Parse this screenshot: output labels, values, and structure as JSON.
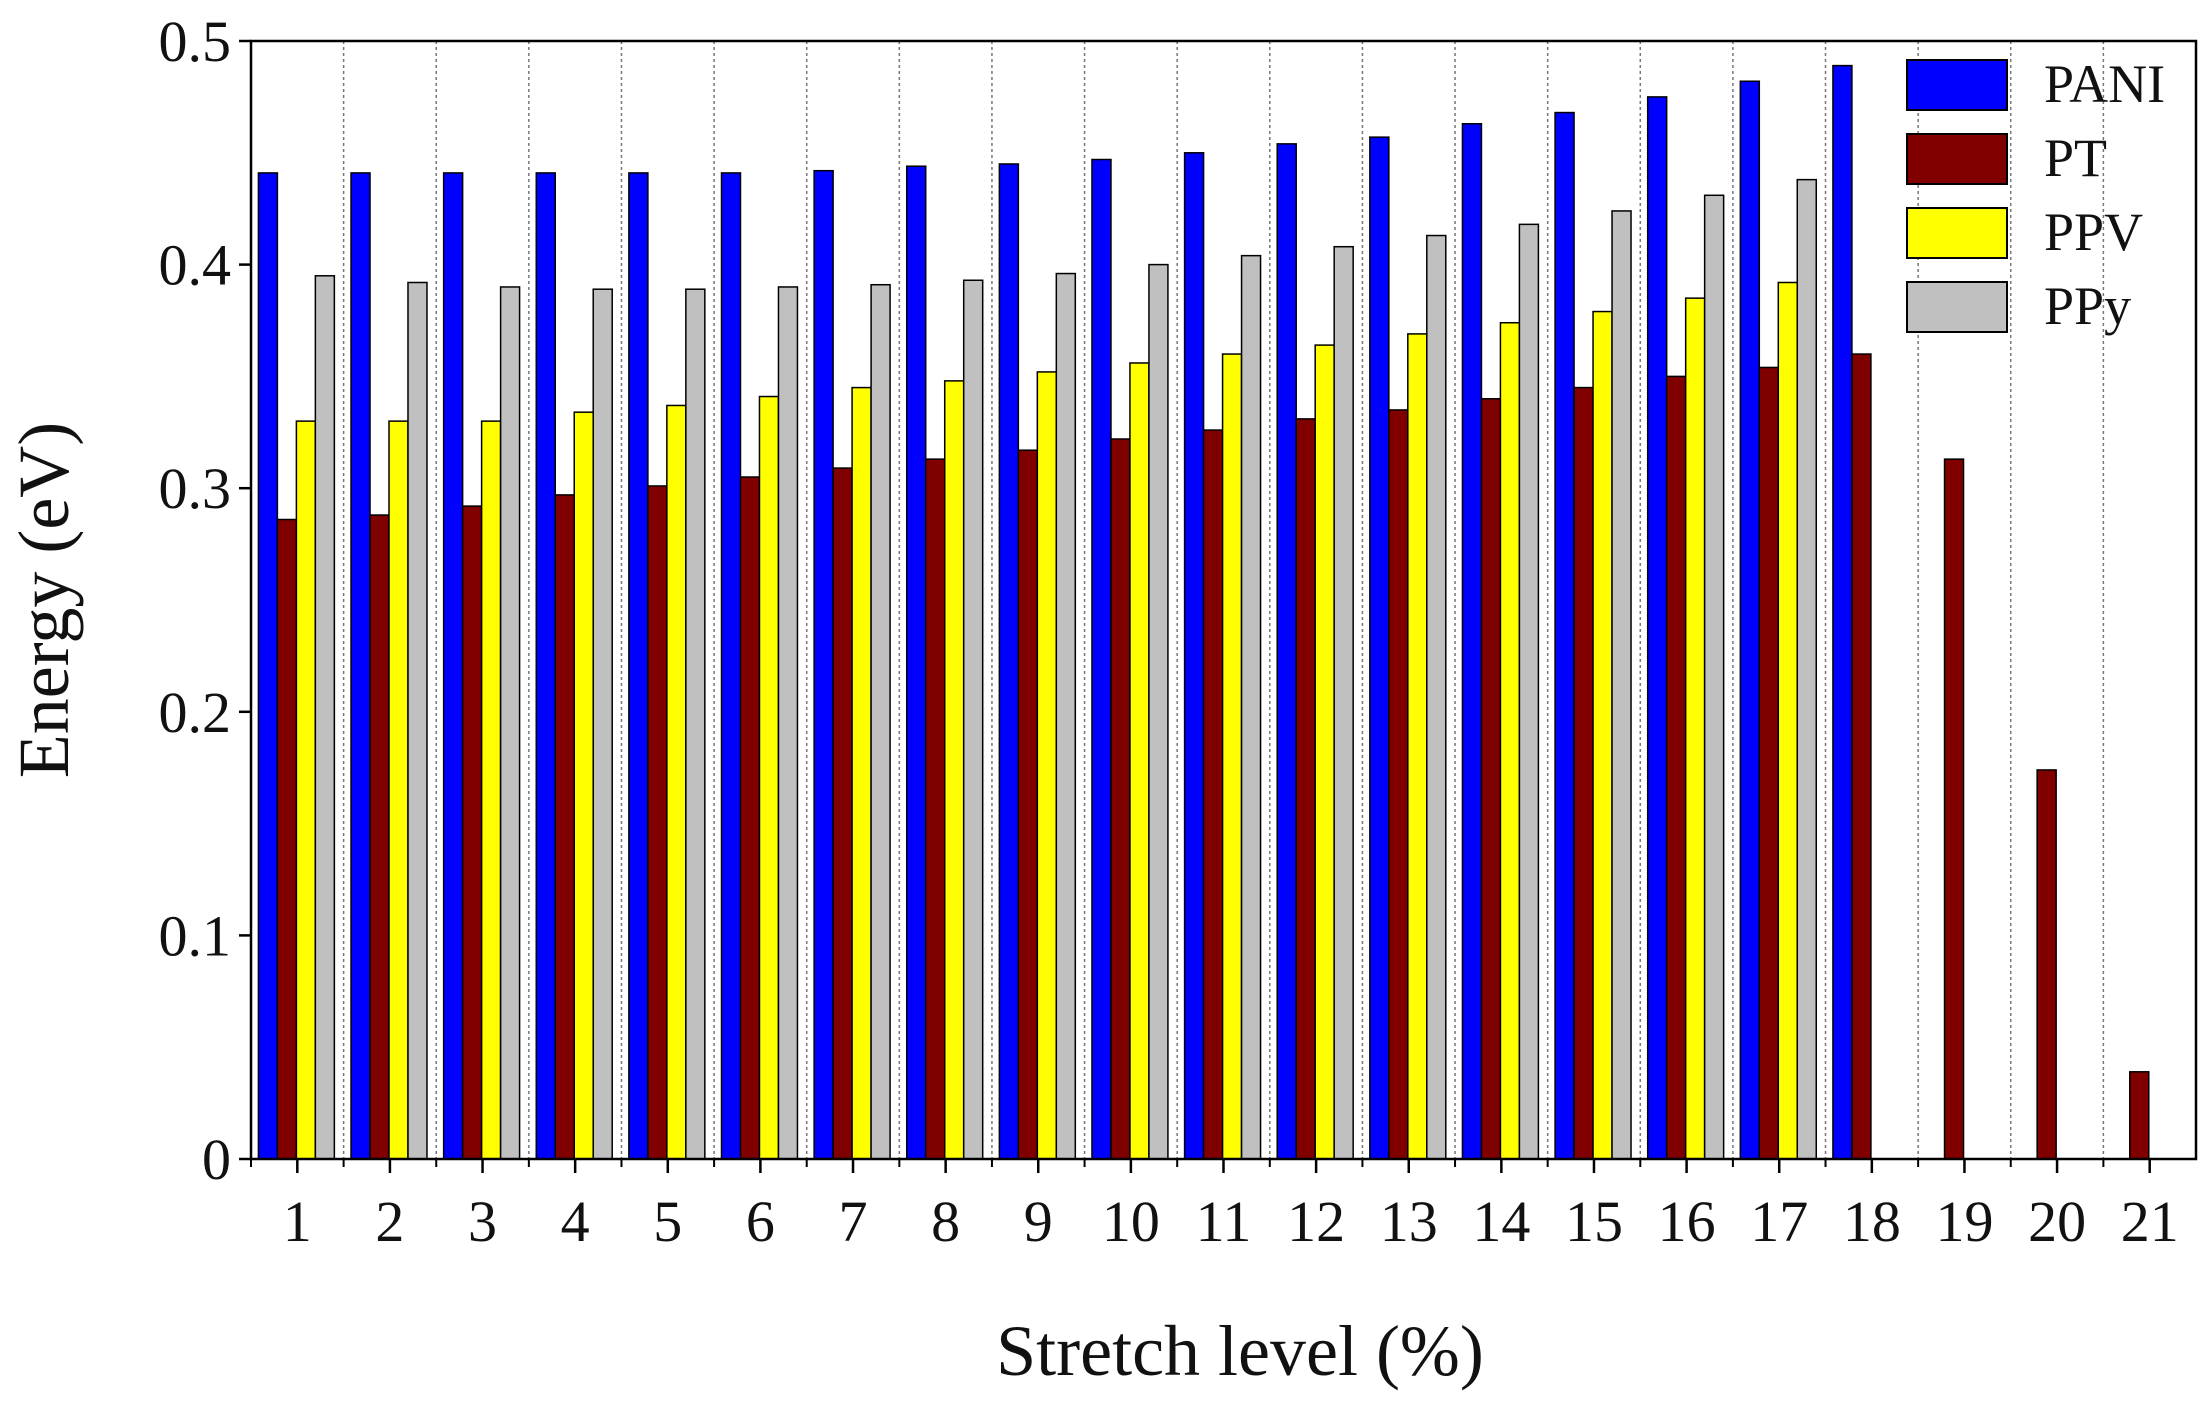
{
  "chart_data": {
    "type": "bar",
    "x_label": "Stretch level (%)",
    "y_label": "Energy (eV)",
    "categories": [
      "1",
      "2",
      "3",
      "4",
      "5",
      "6",
      "7",
      "8",
      "9",
      "10",
      "11",
      "12",
      "13",
      "14",
      "15",
      "16",
      "17",
      "18",
      "19",
      "20",
      "21"
    ],
    "series": [
      {
        "name": "PANI",
        "color": "#0000ff",
        "values": [
          0.441,
          0.441,
          0.441,
          0.441,
          0.441,
          0.441,
          0.442,
          0.444,
          0.445,
          0.447,
          0.45,
          0.454,
          0.457,
          0.463,
          0.468,
          0.475,
          0.482,
          0.489,
          null,
          null,
          null
        ]
      },
      {
        "name": "PT",
        "color": "#800000",
        "values": [
          0.286,
          0.288,
          0.292,
          0.297,
          0.301,
          0.305,
          0.309,
          0.313,
          0.317,
          0.322,
          0.326,
          0.331,
          0.335,
          0.34,
          0.345,
          0.35,
          0.354,
          0.36,
          0.313,
          0.174,
          0.039
        ]
      },
      {
        "name": "PPV",
        "color": "#ffff00",
        "values": [
          0.33,
          0.33,
          0.33,
          0.334,
          0.337,
          0.341,
          0.345,
          0.348,
          0.352,
          0.356,
          0.36,
          0.364,
          0.369,
          0.374,
          0.379,
          0.385,
          0.392,
          null,
          null,
          null,
          null
        ]
      },
      {
        "name": "PPy",
        "color": "#c0c0c0",
        "values": [
          0.395,
          0.392,
          0.39,
          0.389,
          0.389,
          0.39,
          0.391,
          0.393,
          0.396,
          0.4,
          0.404,
          0.408,
          0.413,
          0.418,
          0.424,
          0.431,
          0.438,
          null,
          null,
          null,
          null
        ]
      }
    ],
    "ylim": [
      0,
      0.5
    ],
    "yticks": [
      0,
      0.1,
      0.2,
      0.3,
      0.4,
      0.5
    ],
    "grid": true,
    "legend": "top-right"
  }
}
